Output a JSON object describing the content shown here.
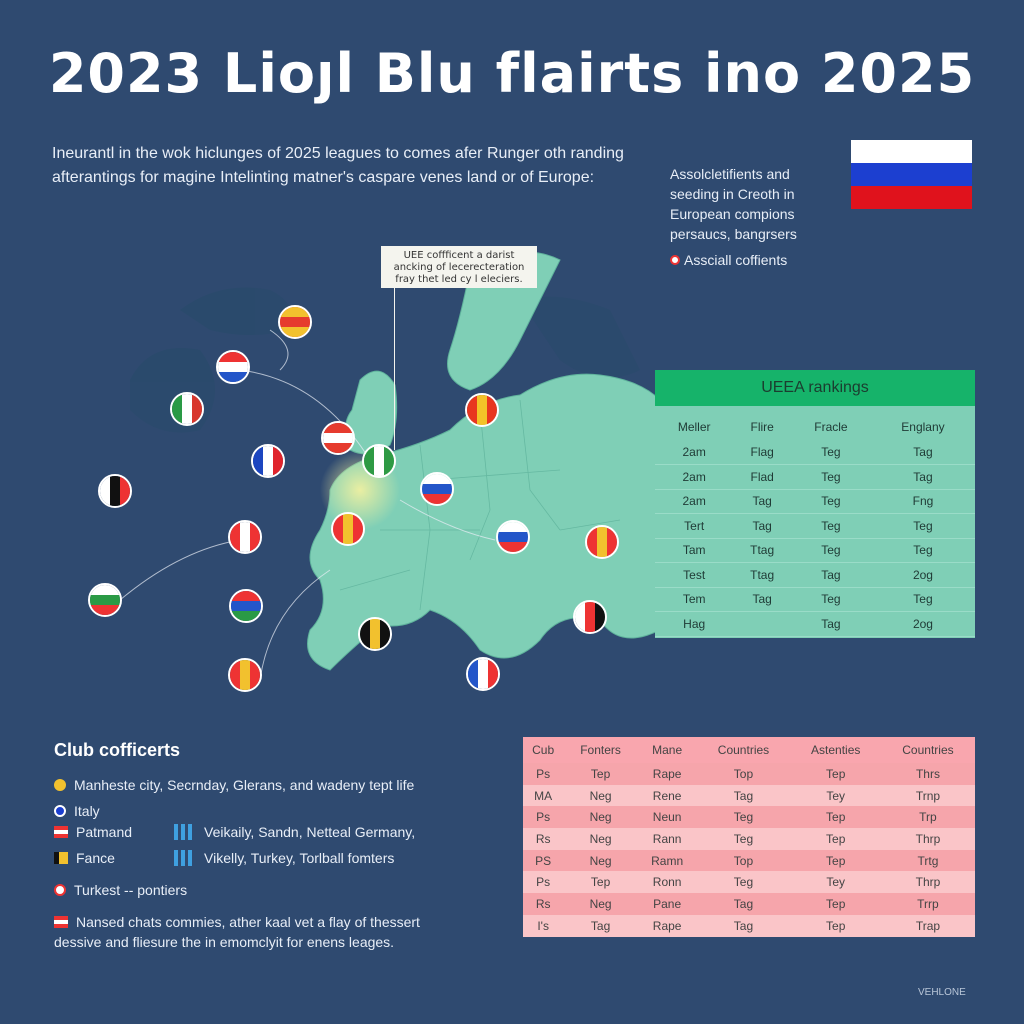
{
  "title": "2023 Lioȷl Blu flairts ino 2025",
  "intro_line1": "Ineurantl in the wok hiclunges of 2025 leagues to comes afer Runger oth randing",
  "intro_line2": "afterantings for magine Intelinting matner's caspare venes land or of Europe:",
  "side_note": "Assolcletifients and seeding in Creoth in European compions persaucs, bangrsers",
  "side_legend": "Assciall coffients",
  "callout_text": "UEE coffficent a darist ancking of lecerecteration fray thet led cy l eleciers.",
  "rankings": {
    "heading": "UEEA rankings",
    "columns": [
      "Meller",
      "Flire",
      "Fracle",
      "Englany"
    ],
    "rows": [
      [
        "2am",
        "Flag",
        "Teg",
        "Tag"
      ],
      [
        "2am",
        "Flad",
        "Teg",
        "Tag"
      ],
      [
        "2am",
        "Tag",
        "Teg",
        "Fng"
      ],
      [
        "Tert",
        "Tag",
        "Teg",
        "Teg"
      ],
      [
        "Tam",
        "Ttag",
        "Teg",
        "Teg"
      ],
      [
        "Test",
        "Ttag",
        "Tag",
        "2og"
      ],
      [
        "Tem",
        "Tag",
        "Teg",
        "Teg"
      ],
      [
        "Hag",
        "",
        "Tag",
        "2og"
      ]
    ]
  },
  "club": {
    "title": "Club cofficerts",
    "items": [
      "Manheste city, Secrnday, Glerans, and wadeny tept life",
      "Italy",
      "Patmand",
      "Fance",
      "Turkest -- pontiers"
    ],
    "dual1": "Veikaily, Sandn, Netteal Germany,",
    "dual2": "Vikelly, Turkey, Torlball fomters",
    "para_line1": "Nansed chats commies, ather kaal vet a flay of thessert",
    "para_line2": "dessive and fliesure the in emomclyit for enens leages."
  },
  "club_table": {
    "columns": [
      "Cub",
      "Fonters",
      "Mane",
      "Countries",
      "Astenties",
      "Countries"
    ],
    "rows": [
      [
        "Ps",
        "Tep",
        "Rape",
        "Top",
        "Tep",
        "Thrs"
      ],
      [
        "MA",
        "Neg",
        "Rene",
        "Tag",
        "Tey",
        "Trnp"
      ],
      [
        "Ps",
        "Neg",
        "Neun",
        "Teg",
        "Tep",
        "Trp"
      ],
      [
        "Rs",
        "Neg",
        "Rann",
        "Teg",
        "Tep",
        "Thrp"
      ],
      [
        "PS",
        "Neg",
        "Ramn",
        "Top",
        "Tep",
        "Trtg"
      ],
      [
        "Ps",
        "Tep",
        "Ronn",
        "Teg",
        "Tey",
        "Thrp"
      ],
      [
        "Rs",
        "Neg",
        "Pane",
        "Tag",
        "Tep",
        "Trrp"
      ],
      [
        "I's",
        "Tag",
        "Rape",
        "Tag",
        "Tep",
        "Trap"
      ]
    ]
  },
  "footer": "VEHLONE",
  "colors": {
    "background": "#2f4a70",
    "map_land": "#7fcfb6",
    "rankings_header": "#16b36a",
    "club_table_bg": "#fbd3d6"
  }
}
